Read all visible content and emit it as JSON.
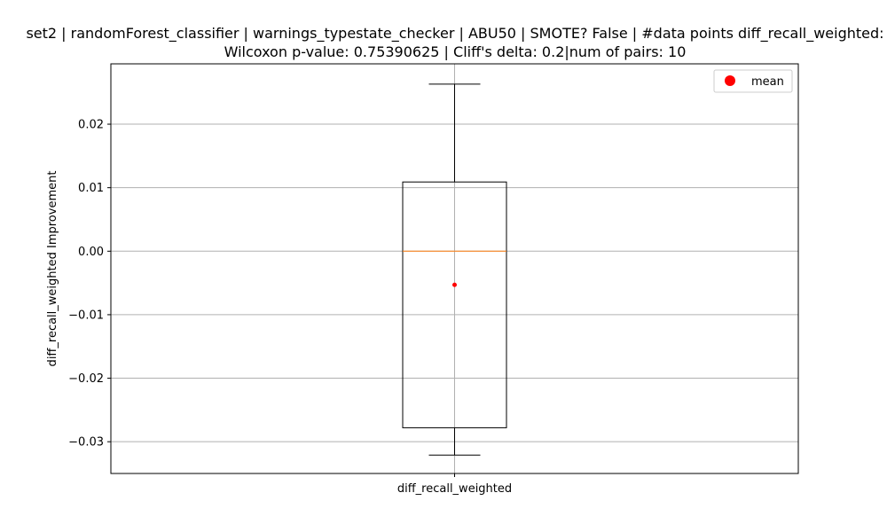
{
  "chart_data": {
    "type": "box",
    "title_lines": [
      "set2 | randomForest_classifier | warnings_typestate_checker | ABU50 | SMOTE? False | #data points diff_recall_weighted:",
      "Wilcoxon p-value: 0.75390625 | Cliff's delta: 0.2|num of pairs: 10"
    ],
    "xlabel": "",
    "ylabel": "diff_recall_weighted Improvement",
    "ylim": [
      -0.035,
      0.0295
    ],
    "yticks": [
      -0.03,
      -0.02,
      -0.01,
      0.0,
      0.01,
      0.02
    ],
    "ytick_labels": [
      "−0.03",
      "−0.02",
      "−0.01",
      "0.00",
      "0.01",
      "0.02"
    ],
    "grid": true,
    "categories": [
      "diff_recall_weighted"
    ],
    "boxes": [
      {
        "name": "diff_recall_weighted",
        "whisker_low": -0.0321,
        "q1": -0.0278,
        "median": 0.0,
        "q3": 0.0109,
        "whisker_high": 0.0263,
        "mean": -0.0053
      }
    ],
    "legend": {
      "position": "top-right",
      "entries": [
        {
          "label": "mean",
          "marker": "circle",
          "color": "#ff0000"
        }
      ]
    },
    "colors": {
      "box": "#000000",
      "median": "#ff7f0e",
      "mean": "#ff0000",
      "grid": "#b0b0b0"
    }
  }
}
